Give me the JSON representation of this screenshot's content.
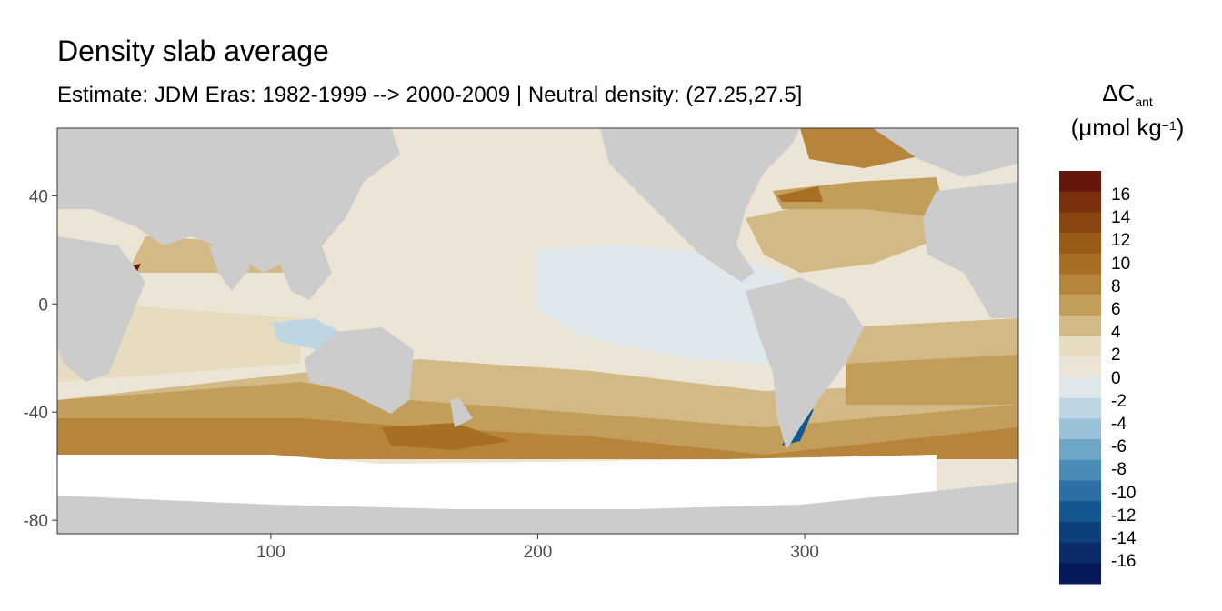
{
  "title": "Density slab average",
  "subtitle": "Estimate: JDM Eras: 1982-1999 --> 2000-2009 | Neutral density: (27.25,27.5]",
  "legend": {
    "symbol": "ΔC",
    "subscript": "ant",
    "unit_open": "(μmol kg",
    "unit_sup": "−1",
    "unit_close": ")",
    "labels": [
      "16",
      "14",
      "12",
      "10",
      "8",
      "6",
      "4",
      "2",
      "0",
      "-2",
      "-4",
      "-6",
      "-8",
      "-10",
      "-12",
      "-14",
      "-16"
    ],
    "colors": [
      "#66160a",
      "#7a300c",
      "#8a4510",
      "#985b18",
      "#a86f24",
      "#b6843a",
      "#c39d5a",
      "#d2b985",
      "#e8dcc0",
      "#ece5d6",
      "#dfe8ec",
      "#bed5e2",
      "#9ac1d8",
      "#6ea6c8",
      "#4a8cb8",
      "#2a70a6",
      "#125790",
      "#0c407a",
      "#0a2c6a",
      "#06195a"
    ]
  },
  "map": {
    "land_color": "#cccccc",
    "ice_color": "#ffffff",
    "x_ticks": [
      "100",
      "200",
      "300"
    ],
    "y_ticks": [
      "40",
      "0",
      "-40",
      "-80"
    ],
    "xlim": [
      20,
      380
    ],
    "ylim": [
      -85,
      65
    ]
  }
}
